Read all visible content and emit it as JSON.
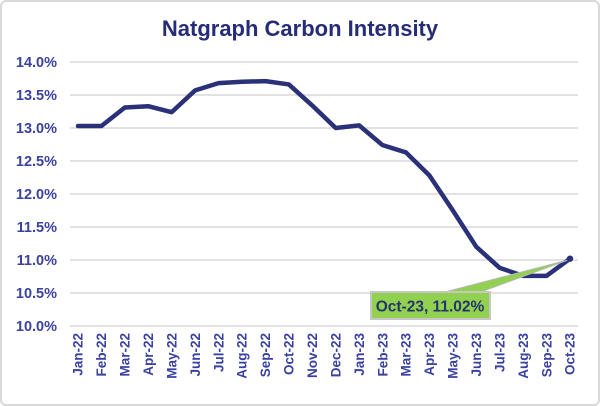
{
  "window": {
    "background": "#ffffff",
    "border_color": "#d9d9d9"
  },
  "chart_data": {
    "type": "line",
    "title": "Natgraph Carbon Intensity",
    "x": [
      "Jan-22",
      "Feb-22",
      "Mar-22",
      "Apr-22",
      "May-22",
      "Jun-22",
      "Jul-22",
      "Aug-22",
      "Sep-22",
      "Oct-22",
      "Nov-22",
      "Dec-22",
      "Jan-23",
      "Feb-23",
      "Mar-23",
      "Apr-23",
      "May-23",
      "Jun-23",
      "Jul-23",
      "Aug-23",
      "Sep-23",
      "Oct-23"
    ],
    "values": [
      13.03,
      13.03,
      13.31,
      13.33,
      13.24,
      13.57,
      13.68,
      13.7,
      13.71,
      13.66,
      13.34,
      13.0,
      13.04,
      12.74,
      12.63,
      12.28,
      11.75,
      11.2,
      10.88,
      10.76,
      10.76,
      11.02
    ],
    "ylabel": "",
    "xlabel": "",
    "ylim": [
      10.0,
      14.0
    ],
    "ytick_step": 0.5,
    "ytick_suffix": "%",
    "grid": true,
    "legend_position": "none",
    "annotation": {
      "label": "Oct-23, 11.02%",
      "target_x": "Oct-23",
      "target_y": 11.02
    },
    "colors": {
      "line": "#2b3179",
      "title": "#262c77",
      "tick_labels": "#3a41a0",
      "grid": "#d9d9d9",
      "annotation_bg": "#92d050",
      "annotation_border": "#c6c6c6",
      "annotation_text": "#24356e",
      "leader_edge": "#b7b7b7"
    }
  }
}
